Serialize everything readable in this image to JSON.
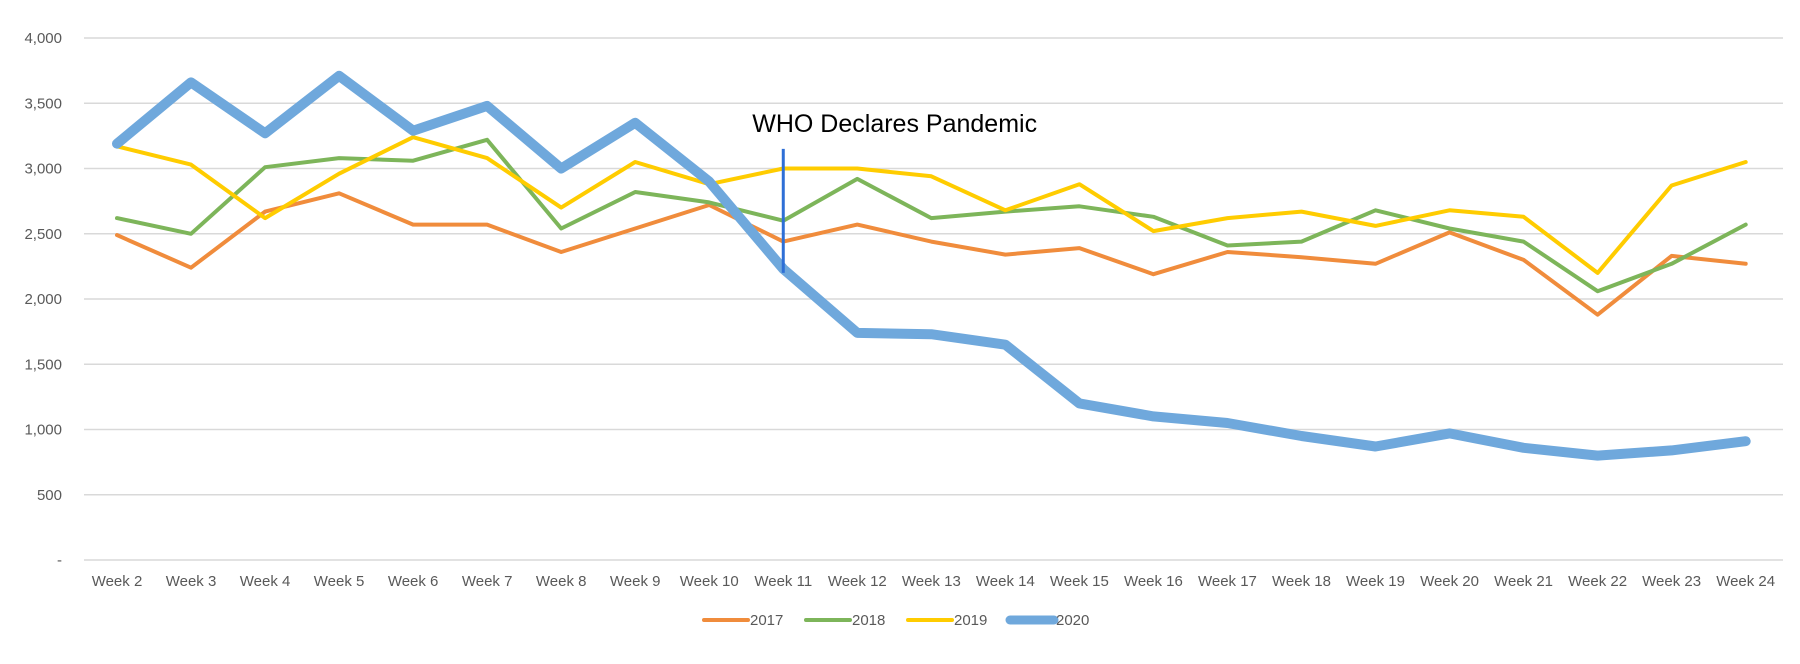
{
  "chart_data": {
    "type": "line",
    "title": "",
    "xlabel": "",
    "ylabel": "",
    "categories": [
      "Week 2",
      "Week 3",
      "Week 4",
      "Week 5",
      "Week 6",
      "Week 7",
      "Week 8",
      "Week 9",
      "Week 10",
      "Week 11",
      "Week 12",
      "Week 13",
      "Week 14",
      "Week 15",
      "Week 16",
      "Week 17",
      "Week 18",
      "Week 19",
      "Week 20",
      "Week 21",
      "Week 22",
      "Week 23",
      "Week 24"
    ],
    "ylim": [
      0,
      4000
    ],
    "yticks": [
      0,
      500,
      1000,
      1500,
      2000,
      2500,
      3000,
      3500,
      4000
    ],
    "ytick_labels": [
      "-",
      "500",
      "1,000",
      "1,500",
      "2,000",
      "2,500",
      "3,000",
      "3,500",
      "4,000"
    ],
    "grid": true,
    "legend_position": "bottom",
    "series": [
      {
        "name": "2017",
        "color": "#F08C3C",
        "values": [
          2490,
          2240,
          2670,
          2810,
          2570,
          2570,
          2360,
          2540,
          2720,
          2440,
          2570,
          2440,
          2340,
          2390,
          2190,
          2360,
          2320,
          2270,
          2510,
          2300,
          1880,
          2330,
          2270
        ]
      },
      {
        "name": "2018",
        "color": "#7DB55A",
        "values": [
          2620,
          2500,
          3010,
          3080,
          3060,
          3220,
          2540,
          2820,
          2740,
          2600,
          2920,
          2620,
          2670,
          2710,
          2630,
          2410,
          2440,
          2680,
          2540,
          2440,
          2060,
          2270,
          2570
        ]
      },
      {
        "name": "2019",
        "color": "#FFCC00",
        "values": [
          3170,
          3030,
          2620,
          2960,
          3240,
          3080,
          2700,
          3050,
          2880,
          3000,
          3000,
          2940,
          2680,
          2880,
          2520,
          2620,
          2670,
          2560,
          2680,
          2630,
          2200,
          2870,
          3050
        ]
      },
      {
        "name": "2020",
        "color": "#6FA8DC",
        "values": [
          3190,
          3660,
          3270,
          3710,
          3290,
          3480,
          3000,
          3350,
          2900,
          2230,
          1740,
          1730,
          1650,
          1200,
          1100,
          1050,
          950,
          870,
          970,
          860,
          800,
          840,
          910
        ]
      }
    ],
    "annotations": [
      {
        "text": "WHO Declares Pandemic",
        "x": "Week 11",
        "y_from": 2200,
        "y_to": 3150,
        "color": "#2E6FD6"
      }
    ]
  }
}
